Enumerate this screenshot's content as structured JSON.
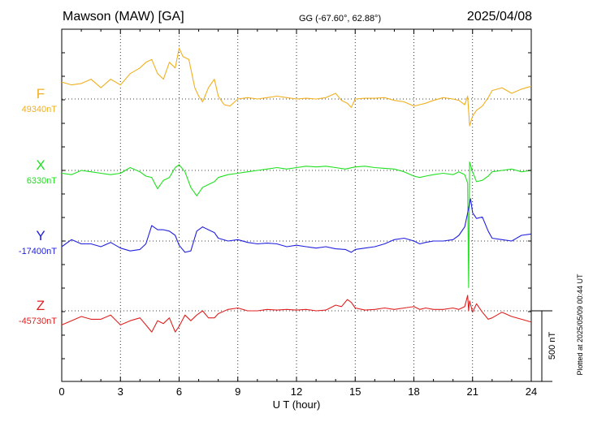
{
  "header": {
    "station": "Mawson (MAW)  [GA]",
    "coords": "GG (-67.60°,  62.88°)",
    "date": "2025/04/08"
  },
  "plotted_note": "Plotted at 2025/05/09 00:44 UT",
  "scale_label": "500 nT",
  "chart_data": {
    "type": "line",
    "xlabel": "U T (hour)",
    "xlim": [
      0,
      24
    ],
    "x_ticks": [
      "0",
      "3",
      "6",
      "9",
      "12",
      "15",
      "18",
      "21",
      "24"
    ],
    "grid": true,
    "series": [
      {
        "name": "F",
        "baseline_label": "49340nT",
        "baseline": 49340,
        "color": "#f0b020",
        "x": [
          0,
          0.5,
          1,
          1.5,
          2,
          2.5,
          3,
          3.5,
          4,
          4.3,
          4.6,
          4.9,
          5.2,
          5.5,
          5.8,
          6,
          6.2,
          6.5,
          6.8,
          7,
          7.2,
          7.5,
          7.8,
          8,
          8.3,
          8.6,
          9,
          9.5,
          10,
          10.5,
          11,
          11.5,
          12,
          12.5,
          13,
          13.5,
          14,
          14.3,
          14.6,
          14.8,
          15,
          15.5,
          16,
          16.5,
          17,
          17.5,
          18,
          18.3,
          18.6,
          19,
          19.5,
          20,
          20.3,
          20.6,
          20.75,
          20.85,
          21,
          21.2,
          21.5,
          21.8,
          22,
          22.5,
          23,
          23.5,
          24
        ],
        "y": [
          49460,
          49440,
          49450,
          49480,
          49420,
          49480,
          49440,
          49520,
          49560,
          49600,
          49620,
          49520,
          49480,
          49600,
          49560,
          49700,
          49640,
          49620,
          49420,
          49360,
          49320,
          49420,
          49480,
          49360,
          49300,
          49290,
          49340,
          49350,
          49340,
          49350,
          49360,
          49350,
          49340,
          49345,
          49340,
          49350,
          49380,
          49330,
          49310,
          49280,
          49340,
          49345,
          49345,
          49350,
          49330,
          49320,
          49290,
          49300,
          49310,
          49330,
          49350,
          49340,
          49330,
          49300,
          49360,
          49150,
          49220,
          49260,
          49290,
          49350,
          49400,
          49420,
          49380,
          49410,
          49430
        ]
      },
      {
        "name": "X",
        "baseline_label": "6330nT",
        "baseline": 6330,
        "color": "#20e020",
        "x": [
          0,
          0.5,
          1,
          1.5,
          2,
          2.5,
          3,
          3.5,
          4,
          4.3,
          4.6,
          4.9,
          5.2,
          5.5,
          5.8,
          6,
          6.3,
          6.6,
          6.9,
          7.2,
          7.5,
          7.8,
          8,
          8.5,
          9,
          9.5,
          10,
          10.5,
          11,
          11.5,
          12,
          12.5,
          13,
          13.5,
          14,
          14.5,
          15,
          15.5,
          16,
          16.5,
          17,
          17.5,
          18,
          18.3,
          18.6,
          19,
          19.5,
          20,
          20.3,
          20.6,
          20.75,
          20.8,
          20.85,
          21,
          21.2,
          21.5,
          21.8,
          22,
          22.5,
          23,
          23.5,
          24
        ],
        "y": [
          6310,
          6300,
          6330,
          6320,
          6310,
          6300,
          6310,
          6350,
          6320,
          6290,
          6280,
          6200,
          6260,
          6280,
          6350,
          6370,
          6320,
          6210,
          6150,
          6210,
          6230,
          6250,
          6280,
          6300,
          6310,
          6320,
          6330,
          6340,
          6350,
          6340,
          6350,
          6360,
          6355,
          6360,
          6350,
          6340,
          6355,
          6360,
          6350,
          6345,
          6340,
          6320,
          6290,
          6280,
          6290,
          6300,
          6310,
          6300,
          6320,
          6300,
          6240,
          5500,
          6390,
          6320,
          6250,
          6260,
          6290,
          6320,
          6330,
          6340,
          6320,
          6330
        ]
      },
      {
        "name": "Y",
        "baseline_label": "-17400nT",
        "baseline": -17400,
        "color": "#2020e0",
        "x": [
          0,
          0.5,
          1,
          1.5,
          2,
          2.5,
          3,
          3.5,
          4,
          4.3,
          4.6,
          4.9,
          5.2,
          5.5,
          5.8,
          6,
          6.3,
          6.6,
          6.9,
          7.2,
          7.5,
          7.8,
          8,
          8.5,
          9,
          9.5,
          10,
          10.5,
          11,
          11.5,
          12,
          12.5,
          13,
          13.5,
          14,
          14.5,
          14.8,
          15,
          15.5,
          16,
          16.5,
          17,
          17.5,
          18,
          18.3,
          18.6,
          19,
          19.5,
          20,
          20.3,
          20.6,
          20.75,
          20.9,
          21,
          21.2,
          21.5,
          21.8,
          22,
          22.5,
          23,
          23.5,
          24
        ],
        "y": [
          -17440,
          -17390,
          -17420,
          -17420,
          -17440,
          -17410,
          -17450,
          -17470,
          -17460,
          -17420,
          -17290,
          -17320,
          -17320,
          -17330,
          -17360,
          -17430,
          -17480,
          -17470,
          -17330,
          -17300,
          -17320,
          -17340,
          -17380,
          -17400,
          -17390,
          -17410,
          -17420,
          -17415,
          -17420,
          -17440,
          -17430,
          -17440,
          -17450,
          -17440,
          -17455,
          -17460,
          -17480,
          -17460,
          -17450,
          -17440,
          -17420,
          -17390,
          -17380,
          -17400,
          -17420,
          -17410,
          -17400,
          -17400,
          -17390,
          -17360,
          -17300,
          -17200,
          -17100,
          -17200,
          -17240,
          -17230,
          -17330,
          -17380,
          -17390,
          -17400,
          -17360,
          -17350
        ]
      },
      {
        "name": "Z",
        "baseline_label": "-45730nT",
        "baseline": -45730,
        "color": "#e02020",
        "x": [
          0,
          0.5,
          1,
          1.5,
          2,
          2.5,
          3,
          3.5,
          4,
          4.3,
          4.6,
          4.9,
          5.2,
          5.5,
          5.8,
          6,
          6.3,
          6.6,
          6.9,
          7.2,
          7.5,
          7.8,
          8,
          8.5,
          9,
          9.5,
          10,
          10.5,
          11,
          11.5,
          12,
          12.5,
          13,
          13.5,
          14,
          14.3,
          14.6,
          14.8,
          15,
          15.5,
          16,
          16.5,
          17,
          17.5,
          18,
          18.3,
          18.6,
          19,
          19.5,
          20,
          20.3,
          20.6,
          20.75,
          20.8,
          20.85,
          21,
          21.2,
          21.5,
          21.8,
          22,
          22.5,
          23,
          23.5,
          24
        ],
        "y": [
          -45830,
          -45800,
          -45770,
          -45790,
          -45790,
          -45760,
          -45830,
          -45800,
          -45780,
          -45830,
          -45880,
          -45800,
          -45820,
          -45780,
          -45880,
          -45840,
          -45760,
          -45800,
          -45760,
          -45730,
          -45780,
          -45780,
          -45750,
          -45720,
          -45710,
          -45730,
          -45730,
          -45720,
          -45725,
          -45720,
          -45725,
          -45720,
          -45730,
          -45725,
          -45690,
          -45700,
          -45650,
          -45670,
          -45710,
          -45725,
          -45720,
          -45710,
          -45720,
          -45710,
          -45700,
          -45720,
          -45710,
          -45720,
          -45720,
          -45710,
          -45720,
          -45700,
          -45620,
          -45730,
          -45660,
          -45740,
          -45680,
          -45740,
          -45790,
          -45780,
          -45740,
          -45770,
          -45790,
          -45810
        ]
      }
    ]
  }
}
